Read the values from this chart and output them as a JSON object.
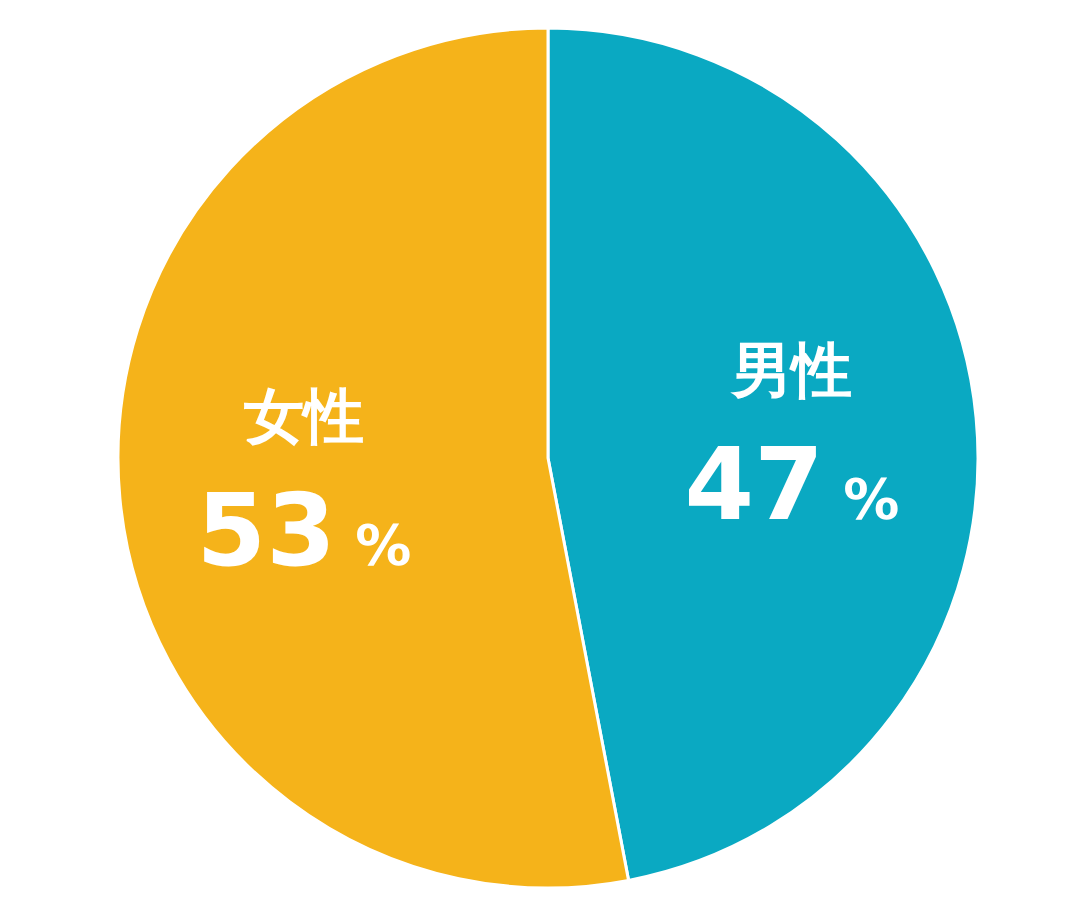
{
  "chart_data": {
    "type": "pie",
    "categories": [
      "男性",
      "女性"
    ],
    "values": [
      47,
      53
    ],
    "colors": [
      "#0aa9c2",
      "#f5b31a"
    ],
    "value_labels": [
      "47 %",
      "53 %"
    ]
  }
}
